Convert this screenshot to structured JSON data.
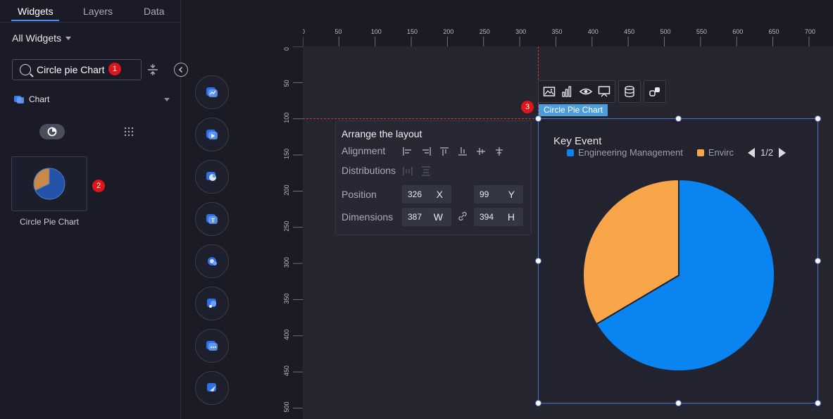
{
  "left_panel": {
    "tabs": [
      {
        "label": "Widgets",
        "active": true
      },
      {
        "label": "Layers",
        "active": false
      },
      {
        "label": "Data",
        "active": false
      }
    ],
    "filter_label": "All Widgets",
    "search": {
      "value": "Circle pie Chart",
      "badge": "1"
    },
    "category": {
      "label": "Chart"
    },
    "widget": {
      "label": "Circle Pie Chart",
      "badge": "2"
    }
  },
  "rulers": {
    "top_ticks": [
      "0",
      "50",
      "100",
      "150",
      "200",
      "250",
      "300",
      "350",
      "400",
      "450",
      "500",
      "550",
      "600",
      "650",
      "700"
    ],
    "left_ticks": [
      "0",
      "50",
      "100",
      "150",
      "200",
      "250",
      "300",
      "350",
      "400",
      "450",
      "500"
    ]
  },
  "arrange_panel": {
    "title": "Arrange the layout",
    "alignment_label": "Alignment",
    "distributions_label": "Distributions",
    "position_label": "Position",
    "dimensions_label": "Dimensions",
    "x": "326",
    "x_unit": "X",
    "y": "99",
    "y_unit": "Y",
    "w": "387",
    "w_unit": "W",
    "h": "394",
    "h_unit": "H"
  },
  "selected": {
    "tag": "Circle Pie Chart",
    "badge": "3",
    "toolbar_icons": [
      "image-icon",
      "bar-chart-icon",
      "eye-icon",
      "screen-icon",
      "database-icon",
      "link-icon"
    ]
  },
  "chart_widget": {
    "title": "Key Event",
    "legend": [
      {
        "label": "Engineering Management",
        "color": "#0a84f0"
      },
      {
        "label": "Envirc",
        "color": "#f9a54a"
      }
    ],
    "pager": "1/2"
  },
  "chart_data": {
    "type": "pie",
    "title": "Key Event",
    "slices": [
      {
        "name": "Engineering Management",
        "value": 66.5,
        "color": "#0a84f0"
      },
      {
        "name": "Envirc",
        "value": 33.5,
        "color": "#f9a54a"
      }
    ],
    "start_angle_deg": 0,
    "legend_position": "top-left"
  },
  "colors": {
    "accent": "#4d8df7",
    "selection": "#4d72c9",
    "badge": "#e0141a"
  }
}
